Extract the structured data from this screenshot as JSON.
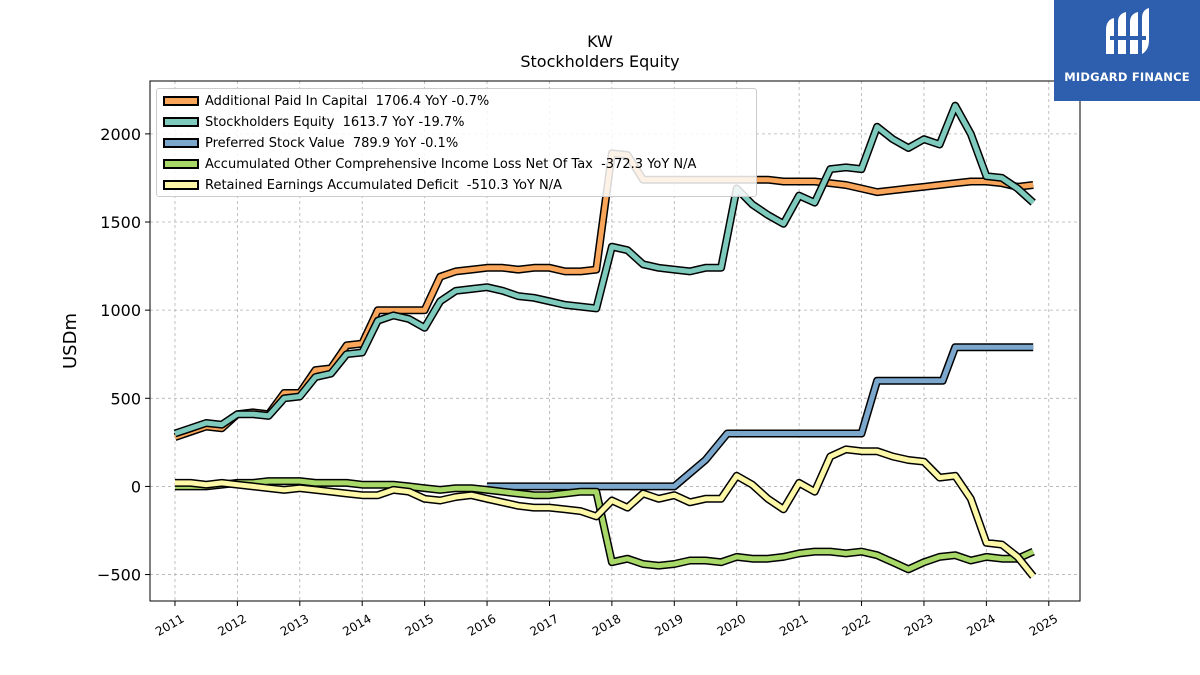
{
  "header": {
    "ticker": "KW",
    "subtitle": "Stockholders  Equity"
  },
  "logo": {
    "text": "MIDGARD FINANCE",
    "icon": "midgard-logo-icon",
    "background": "#2e5fae"
  },
  "chart_data": {
    "type": "line",
    "title": "KW",
    "subtitle": "Stockholders  Equity",
    "xlabel": "",
    "ylabel": "USDm",
    "ylim": [
      -650,
      2300
    ],
    "xlim": [
      2010.6,
      2025.5
    ],
    "grid": true,
    "legend_position": "top-left",
    "x_ticks": [
      "2011",
      "2012",
      "2013",
      "2014",
      "2015",
      "2016",
      "2017",
      "2018",
      "2019",
      "2020",
      "2021",
      "2022",
      "2023",
      "2024",
      "2025"
    ],
    "y_ticks": [
      "−500",
      "0",
      "500",
      "1000",
      "1500",
      "2000"
    ],
    "y_tick_values": [
      -500,
      0,
      500,
      1000,
      1500,
      2000
    ],
    "series": [
      {
        "name": "Additional Paid In Capital",
        "legend_label": "Additional Paid In Capital  1706.4 YoY -0.7%",
        "color": "#f9a65a",
        "x": [
          2011.0,
          2011.25,
          2011.5,
          2011.75,
          2012.0,
          2012.25,
          2012.5,
          2012.75,
          2013.0,
          2013.25,
          2013.5,
          2013.75,
          2014.0,
          2014.25,
          2014.5,
          2014.75,
          2015.0,
          2015.25,
          2015.5,
          2015.75,
          2016.0,
          2016.25,
          2016.5,
          2016.75,
          2017.0,
          2017.25,
          2017.5,
          2017.75,
          2018.0,
          2018.25,
          2018.5,
          2018.75,
          2019.0,
          2019.25,
          2019.5,
          2019.75,
          2020.0,
          2020.25,
          2020.5,
          2020.75,
          2021.0,
          2021.25,
          2021.5,
          2021.75,
          2022.0,
          2022.25,
          2022.5,
          2022.75,
          2023.0,
          2023.25,
          2023.5,
          2023.75,
          2024.0,
          2024.25,
          2024.5,
          2024.75
        ],
        "values": [
          280,
          310,
          340,
          330,
          410,
          420,
          410,
          530,
          530,
          660,
          670,
          800,
          810,
          1000,
          1000,
          1000,
          1000,
          1190,
          1220,
          1230,
          1240,
          1240,
          1230,
          1240,
          1240,
          1220,
          1220,
          1230,
          1890,
          1880,
          1740,
          1740,
          1740,
          1740,
          1740,
          1740,
          1740,
          1740,
          1740,
          1730,
          1730,
          1730,
          1720,
          1710,
          1690,
          1670,
          1680,
          1690,
          1700,
          1710,
          1720,
          1730,
          1730,
          1720,
          1700,
          1710
        ]
      },
      {
        "name": "Stockholders Equity",
        "legend_label": "Stockholders Equity  1613.7 YoY -19.7%",
        "color": "#7ecbbd",
        "x": [
          2011.0,
          2011.25,
          2011.5,
          2011.75,
          2012.0,
          2012.25,
          2012.5,
          2012.75,
          2013.0,
          2013.25,
          2013.5,
          2013.75,
          2014.0,
          2014.25,
          2014.5,
          2014.75,
          2015.0,
          2015.25,
          2015.5,
          2015.75,
          2016.0,
          2016.25,
          2016.5,
          2016.75,
          2017.0,
          2017.25,
          2017.5,
          2017.75,
          2018.0,
          2018.25,
          2018.5,
          2018.75,
          2019.0,
          2019.25,
          2019.5,
          2019.75,
          2020.0,
          2020.25,
          2020.5,
          2020.75,
          2021.0,
          2021.25,
          2021.5,
          2021.75,
          2022.0,
          2022.25,
          2022.5,
          2022.75,
          2023.0,
          2023.25,
          2023.5,
          2023.75,
          2024.0,
          2024.25,
          2024.5,
          2024.75
        ],
        "values": [
          300,
          330,
          360,
          350,
          410,
          410,
          400,
          500,
          510,
          620,
          640,
          750,
          760,
          940,
          970,
          950,
          900,
          1050,
          1110,
          1120,
          1130,
          1110,
          1080,
          1070,
          1050,
          1030,
          1020,
          1010,
          1360,
          1340,
          1260,
          1240,
          1230,
          1220,
          1240,
          1240,
          1690,
          1600,
          1540,
          1490,
          1650,
          1610,
          1800,
          1810,
          1800,
          2040,
          1970,
          1920,
          1970,
          1940,
          2160,
          2000,
          1760,
          1750,
          1690,
          1610
        ]
      },
      {
        "name": "Preferred Stock Value",
        "legend_label": "Preferred Stock Value  789.9 YoY -0.1%",
        "color": "#7ba7cc",
        "x": [
          2016.0,
          2016.5,
          2017.0,
          2017.5,
          2018.0,
          2018.5,
          2019.0,
          2019.5,
          2019.85,
          2020.0,
          2020.5,
          2021.0,
          2021.5,
          2022.0,
          2022.25,
          2022.5,
          2023.0,
          2023.3,
          2023.5,
          2023.75,
          2024.0,
          2024.5,
          2024.75
        ],
        "values": [
          0,
          0,
          0,
          0,
          0,
          0,
          0,
          150,
          300,
          300,
          300,
          300,
          300,
          300,
          600,
          600,
          600,
          600,
          790,
          790,
          790,
          790,
          790
        ]
      },
      {
        "name": "Accumulated Other Comprehensive Income Loss Net Of Tax",
        "legend_label": "Accumulated Other Comprehensive Income Loss Net Of Tax  -372.3 YoY N/A",
        "color": "#a8d868",
        "x": [
          2011.0,
          2011.25,
          2011.5,
          2011.75,
          2012.0,
          2012.25,
          2012.5,
          2012.75,
          2013.0,
          2013.25,
          2013.5,
          2013.75,
          2014.0,
          2014.25,
          2014.5,
          2014.75,
          2015.0,
          2015.25,
          2015.5,
          2015.75,
          2016.0,
          2016.25,
          2016.5,
          2016.75,
          2017.0,
          2017.25,
          2017.5,
          2017.75,
          2018.0,
          2018.25,
          2018.5,
          2018.75,
          2019.0,
          2019.25,
          2019.5,
          2019.75,
          2020.0,
          2020.25,
          2020.5,
          2020.75,
          2021.0,
          2021.25,
          2021.5,
          2021.75,
          2022.0,
          2022.25,
          2022.5,
          2022.75,
          2023.0,
          2023.25,
          2023.5,
          2023.75,
          2024.0,
          2024.25,
          2024.5,
          2024.75
        ],
        "values": [
          0,
          0,
          0,
          10,
          20,
          20,
          30,
          30,
          30,
          20,
          20,
          20,
          10,
          10,
          10,
          0,
          -10,
          -20,
          -10,
          -10,
          -20,
          -30,
          -40,
          -50,
          -50,
          -40,
          -30,
          -30,
          -430,
          -410,
          -440,
          -450,
          -440,
          -420,
          -420,
          -430,
          -400,
          -410,
          -410,
          -400,
          -380,
          -370,
          -370,
          -380,
          -370,
          -390,
          -430,
          -470,
          -430,
          -400,
          -390,
          -420,
          -400,
          -410,
          -410,
          -370
        ]
      },
      {
        "name": "Retained Earnings Accumulated Deficit",
        "legend_label": "Retained Earnings Accumulated Deficit  -510.3 YoY N/A",
        "color": "#fcf8a8",
        "x": [
          2011.0,
          2011.25,
          2011.5,
          2011.75,
          2012.0,
          2012.25,
          2012.5,
          2012.75,
          2013.0,
          2013.25,
          2013.5,
          2013.75,
          2014.0,
          2014.25,
          2014.5,
          2014.75,
          2015.0,
          2015.25,
          2015.5,
          2015.75,
          2016.0,
          2016.25,
          2016.5,
          2016.75,
          2017.0,
          2017.25,
          2017.5,
          2017.75,
          2018.0,
          2018.25,
          2018.5,
          2018.75,
          2019.0,
          2019.25,
          2019.5,
          2019.75,
          2020.0,
          2020.25,
          2020.5,
          2020.75,
          2021.0,
          2021.25,
          2021.5,
          2021.75,
          2022.0,
          2022.25,
          2022.5,
          2022.75,
          2023.0,
          2023.25,
          2023.5,
          2023.75,
          2024.0,
          2024.25,
          2024.5,
          2024.75
        ],
        "values": [
          20,
          20,
          10,
          20,
          10,
          0,
          -10,
          -20,
          -10,
          -20,
          -30,
          -40,
          -50,
          -50,
          -20,
          -30,
          -70,
          -80,
          -60,
          -50,
          -70,
          -90,
          -110,
          -120,
          -120,
          -130,
          -140,
          -170,
          -80,
          -120,
          -40,
          -70,
          -50,
          -90,
          -70,
          -70,
          60,
          10,
          -70,
          -130,
          20,
          -30,
          170,
          210,
          200,
          200,
          170,
          150,
          140,
          50,
          60,
          -70,
          -320,
          -330,
          -400,
          -510
        ]
      }
    ]
  }
}
